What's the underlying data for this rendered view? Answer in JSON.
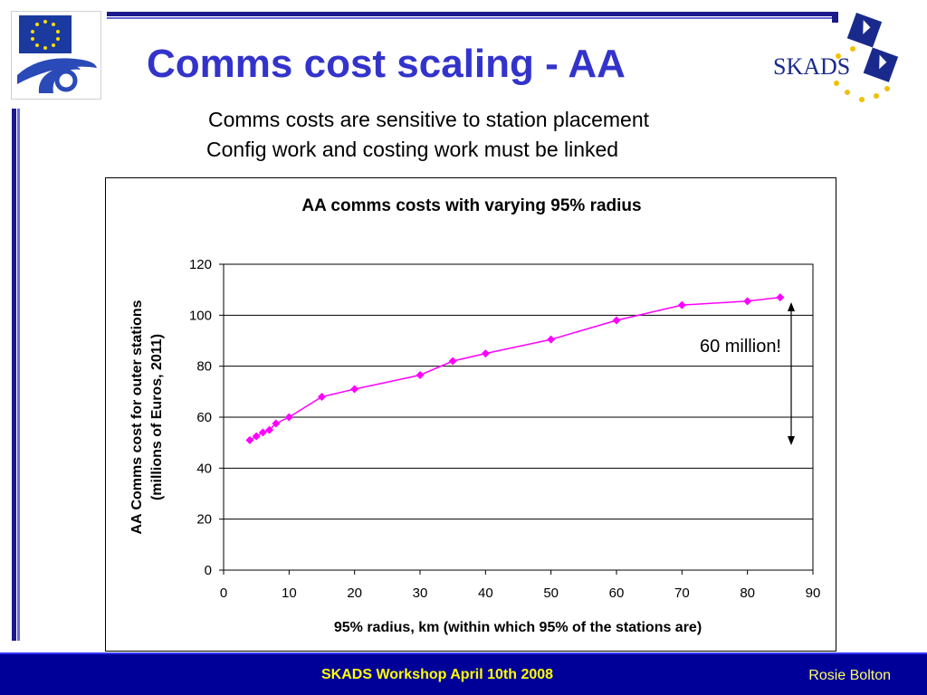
{
  "slide": {
    "title": "Comms cost scaling - AA",
    "subtitle_1": "Comms costs are sensitive to station placement",
    "subtitle_2": "Config work and costing work must be linked",
    "annotation": "60 million!",
    "footer_center": "SKADS Workshop April 10th 2008",
    "footer_right": "Rosie Bolton",
    "skads_logo_text": "SKADS",
    "colors": {
      "title": "#3333cc",
      "series": "#ff00ff",
      "footer_bg": "#000099",
      "footer_text": "#ffff00",
      "bars": "#1a1a8c"
    }
  },
  "chart_data": {
    "type": "line",
    "title": "AA comms costs with varying 95% radius",
    "xlabel": "95% radius, km (within which 95% of the stations are)",
    "ylabel_line1": "AA Comms cost for outer stations",
    "ylabel_line2": "(millions of Euros, 2011)",
    "xlim": [
      0,
      90
    ],
    "ylim": [
      0,
      120
    ],
    "x_ticks": [
      "0",
      "10",
      "20",
      "30",
      "40",
      "50",
      "60",
      "70",
      "80",
      "90"
    ],
    "y_ticks": [
      "0",
      "20",
      "40",
      "60",
      "80",
      "100",
      "120"
    ],
    "grid": "horizontal",
    "series": [
      {
        "x": [
          4,
          5,
          6,
          7,
          8,
          10,
          15,
          20,
          30,
          35,
          40,
          50,
          60,
          70,
          80,
          85
        ],
        "y": [
          51,
          52.5,
          54,
          55,
          57.5,
          60,
          68,
          71,
          76.5,
          82,
          85,
          90.5,
          98,
          104,
          105.5,
          107
        ]
      }
    ]
  }
}
